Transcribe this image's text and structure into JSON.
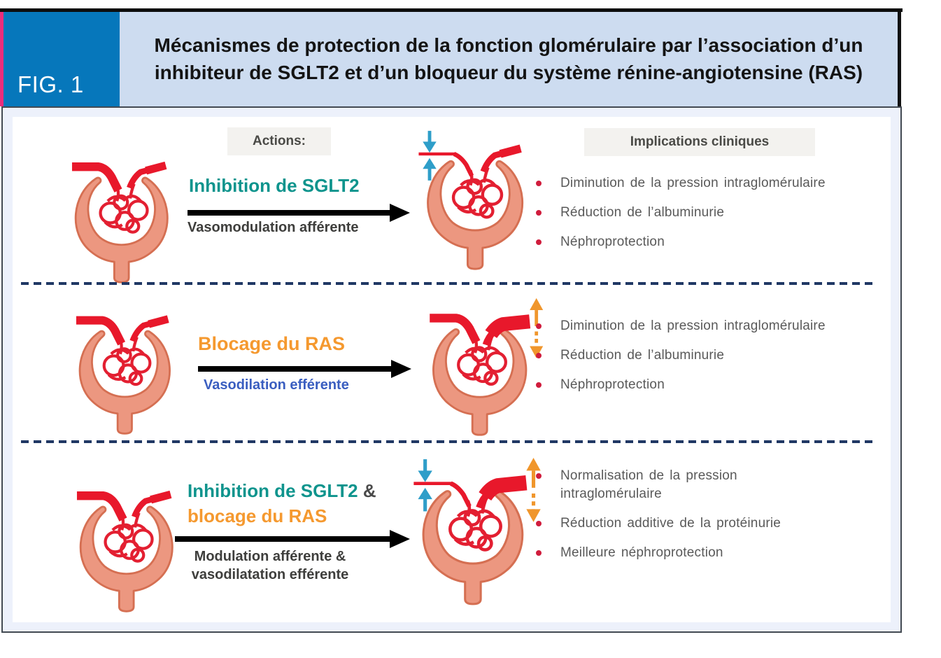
{
  "figure": {
    "tag": "FIG. 1",
    "title_line1": "Mécanismes de protection de la fonction glomérulaire par l’association d’un",
    "title_line2": "inhibiteur de SGLT2 et d’un bloqueur du système rénine-angiotensine (RAS)"
  },
  "column_headers": {
    "actions": "Actions:",
    "implications": "Implications cliniques"
  },
  "colors": {
    "fig_blue": "#0677BB",
    "band_blue": "#CDDCF0",
    "pink": "#EB2D7C",
    "teal_text": "#0F948D",
    "orange_text": "#F5992F",
    "blue_label": "#3A5EC0",
    "bullet_red": "#D01C3C",
    "dash_navy": "#203864",
    "capsule_fill": "#EC9780",
    "capsule_stroke": "#D56F52",
    "vessel_red": "#E8182B",
    "tuft_red": "#E31F31",
    "teal_arrow": "#2E9EC9",
    "orange_arrow": "#F0962C"
  },
  "baseline_glomerulus": {
    "afferent": "normal",
    "efferent": "normal",
    "teal_arrows": false,
    "orange_arrows": false
  },
  "rows": [
    {
      "action_main": "Inhibition de SGLT2",
      "action_sub": "Vasomodulation afférente",
      "right_glomerulus": {
        "afferent": "constricted",
        "efferent": "normal",
        "teal_arrows": true,
        "orange_arrows": false
      },
      "implications": [
        [
          "Diminution de la pression intraglomérulaire"
        ],
        [
          "Réduction de l’albuminurie"
        ],
        [
          "Néphroprotection"
        ]
      ]
    },
    {
      "action_main": "Blocage du RAS",
      "action_sub": "Vasodilation efférente",
      "right_glomerulus": {
        "afferent": "normal",
        "efferent": "dilated",
        "teal_arrows": false,
        "orange_arrows": true
      },
      "implications": [
        [
          "Diminution de la pression intraglomérulaire"
        ],
        [
          "Réduction de l’albuminurie"
        ],
        [
          "Néphroprotection"
        ]
      ]
    },
    {
      "action_line1_main": "Inhibition de SGLT2",
      "action_line1_suffix": " &",
      "action_line2": "blocage du RAS",
      "action_sub_line1": "Modulation afférente &",
      "action_sub_line2": "vasodilatation efférente",
      "right_glomerulus": {
        "afferent": "constricted",
        "efferent": "dilated",
        "teal_arrows": true,
        "orange_arrows": true
      },
      "implications": [
        [
          "Normalisation de la pression",
          "intraglomérulaire"
        ],
        [
          "Réduction additive de la protéinurie"
        ],
        [
          "Meilleure néphroprotection"
        ]
      ]
    }
  ]
}
